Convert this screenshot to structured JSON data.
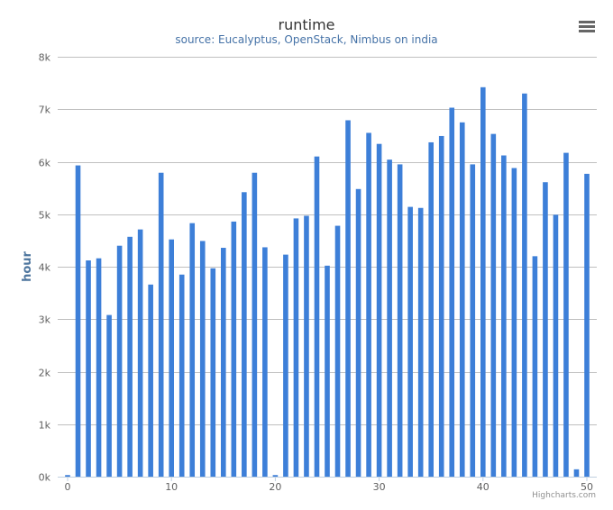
{
  "chart_data": {
    "type": "bar",
    "title": "runtime",
    "subtitle": "source: Eucalyptus, OpenStack, Nimbus on india",
    "xlabel": "",
    "ylabel": "hour",
    "x": [
      0,
      1,
      2,
      3,
      4,
      5,
      6,
      7,
      8,
      9,
      10,
      11,
      12,
      13,
      14,
      15,
      16,
      17,
      18,
      19,
      20,
      21,
      22,
      23,
      24,
      25,
      26,
      27,
      28,
      29,
      30,
      31,
      32,
      33,
      34,
      35,
      36,
      37,
      38,
      39,
      40,
      41,
      42,
      43,
      44,
      45,
      46,
      47,
      48,
      49,
      50
    ],
    "values": [
      30,
      5930,
      4120,
      4160,
      3080,
      4400,
      4570,
      4710,
      3660,
      5790,
      4520,
      3850,
      4830,
      4490,
      3970,
      4360,
      4860,
      5420,
      5790,
      4370,
      30,
      4230,
      4920,
      4970,
      6100,
      4020,
      4780,
      6790,
      5480,
      6550,
      6340,
      6040,
      5950,
      5140,
      5120,
      6370,
      6490,
      7030,
      6750,
      5950,
      7420,
      6530,
      6120,
      5880,
      7300,
      4200,
      5610,
      4990,
      6170,
      140,
      5770
    ],
    "xlim": [
      0,
      50
    ],
    "ylim": [
      0,
      8000
    ],
    "x_ticks": [
      0,
      10,
      20,
      30,
      40,
      50
    ],
    "y_ticks": [
      {
        "value": 0,
        "label": "0k"
      },
      {
        "value": 1000,
        "label": "1k"
      },
      {
        "value": 2000,
        "label": "2k"
      },
      {
        "value": 3000,
        "label": "3k"
      },
      {
        "value": 4000,
        "label": "4k"
      },
      {
        "value": 5000,
        "label": "5k"
      },
      {
        "value": 6000,
        "label": "6k"
      },
      {
        "value": 7000,
        "label": "7k"
      },
      {
        "value": 8000,
        "label": "8k"
      }
    ],
    "grid": true,
    "legend": "none",
    "bar_color": "#3D7FD8",
    "credits": "Highcharts.com"
  },
  "icons": {
    "menu": "hamburger-menu-icon"
  }
}
